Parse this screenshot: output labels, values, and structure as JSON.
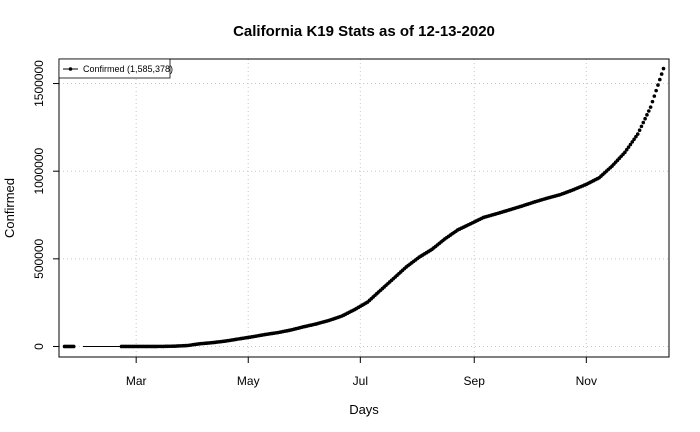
{
  "chart_data": {
    "type": "scatter",
    "title": "California K19 Stats as of 12-13-2020",
    "xlabel": "Days",
    "ylabel": "Confirmed",
    "x_range": [
      "2020-01-22",
      "2020-12-13"
    ],
    "xlim": [
      "2020-01-19",
      "2020-12-16"
    ],
    "ylim": [
      -60000,
      1640000
    ],
    "x_ticks": [
      {
        "date": "2020-03-01",
        "label": "Mar"
      },
      {
        "date": "2020-05-01",
        "label": "May"
      },
      {
        "date": "2020-07-01",
        "label": "Jul"
      },
      {
        "date": "2020-09-01",
        "label": "Sep"
      },
      {
        "date": "2020-11-01",
        "label": "Nov"
      }
    ],
    "y_ticks": [
      {
        "value": 0,
        "label": "0"
      },
      {
        "value": 500000,
        "label": "500000"
      },
      {
        "value": 1000000,
        "label": "1000000"
      },
      {
        "value": 1500000,
        "label": "1500000"
      }
    ],
    "grid": true,
    "legend_position": "top-left",
    "series": [
      {
        "name": "Confirmed (1,585,378)",
        "color": "#000000",
        "marker": "point",
        "points": [
          [
            "2020-01-22",
            0
          ],
          [
            "2020-01-25",
            2
          ],
          [
            "2020-01-31",
            3
          ],
          [
            "2020-02-07",
            6
          ],
          [
            "2020-02-20",
            8
          ],
          [
            "2020-03-08",
            88
          ],
          [
            "2020-03-15",
            335
          ],
          [
            "2020-03-22",
            1733
          ],
          [
            "2020-03-29",
            5565
          ],
          [
            "2020-04-05",
            15865
          ],
          [
            "2020-04-12",
            22348
          ],
          [
            "2020-04-19",
            31431
          ],
          [
            "2020-04-26",
            43464
          ],
          [
            "2020-05-03",
            54937
          ],
          [
            "2020-05-10",
            67939
          ],
          [
            "2020-05-17",
            79121
          ],
          [
            "2020-05-24",
            93488
          ],
          [
            "2020-05-31",
            111951
          ],
          [
            "2020-06-07",
            128593
          ],
          [
            "2020-06-14",
            148855
          ],
          [
            "2020-06-21",
            173824
          ],
          [
            "2020-06-28",
            211243
          ],
          [
            "2020-07-05",
            253615
          ],
          [
            "2020-07-12",
            320804
          ],
          [
            "2020-07-19",
            386795
          ],
          [
            "2020-07-26",
            453659
          ],
          [
            "2020-08-02",
            509162
          ],
          [
            "2020-08-09",
            554160
          ],
          [
            "2020-08-16",
            613556
          ],
          [
            "2020-08-23",
            664695
          ],
          [
            "2020-08-30",
            699909
          ],
          [
            "2020-09-06",
            735907
          ],
          [
            "2020-09-13",
            756867
          ],
          [
            "2020-09-20",
            778788
          ],
          [
            "2020-09-27",
            801213
          ],
          [
            "2020-10-04",
            825180
          ],
          [
            "2020-10-11",
            846867
          ],
          [
            "2020-10-18",
            866710
          ],
          [
            "2020-10-25",
            894391
          ],
          [
            "2020-11-01",
            925010
          ],
          [
            "2020-11-08",
            962410
          ],
          [
            "2020-11-15",
            1029110
          ],
          [
            "2020-11-22",
            1107550
          ],
          [
            "2020-11-29",
            1211780
          ],
          [
            "2020-12-06",
            1365280
          ],
          [
            "2020-12-13",
            1585378
          ]
        ]
      }
    ]
  }
}
